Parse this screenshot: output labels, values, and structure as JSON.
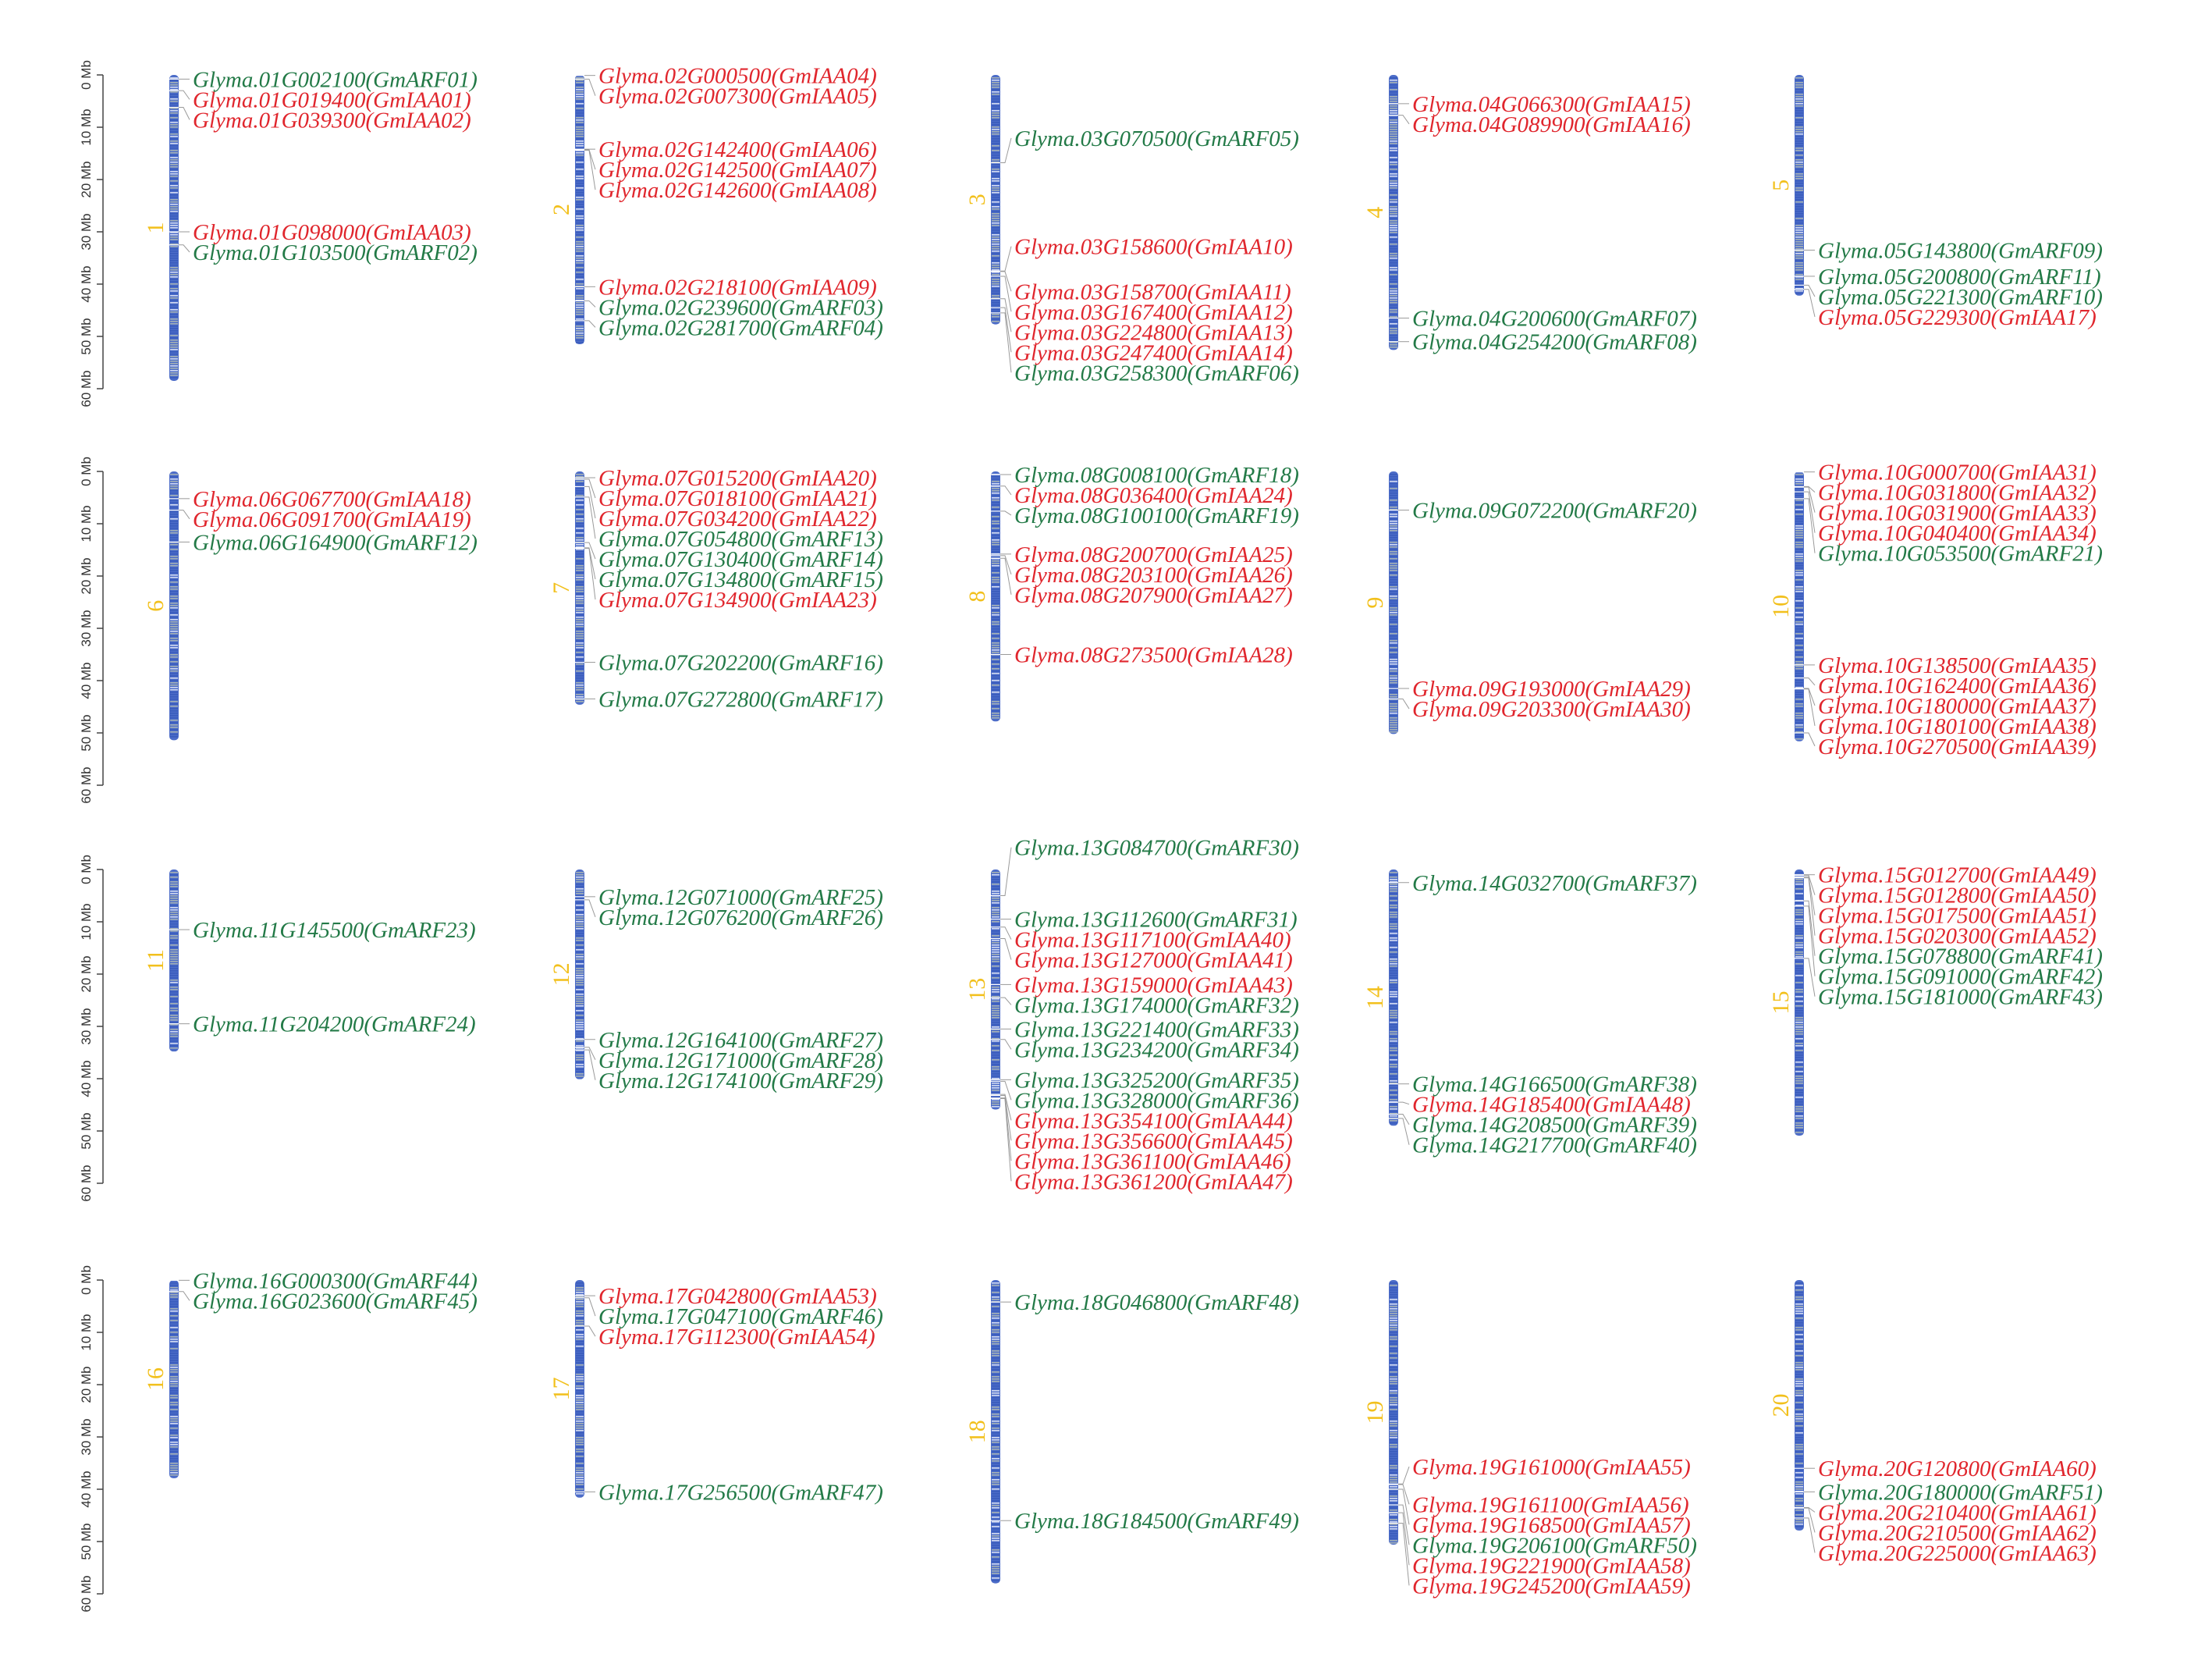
{
  "colors": {
    "arf": "#237A47",
    "iaa": "#E0262D",
    "chromosome_number": "#F2C01C",
    "chromosome_fill": "#4C6CC8",
    "chromosome_light": "#C2C8B0",
    "scale": "#444444"
  },
  "scale_labels": [
    "0 Mb",
    "10 Mb",
    "20 Mb",
    "30 Mb",
    "40 Mb",
    "50 Mb",
    "60 Mb"
  ],
  "chromosomes": [
    {
      "id": "1",
      "length_mb": 58.5,
      "genes": [
        {
          "name": "Glyma.01G002100(GmARF01)",
          "type": "ARF",
          "pos_mb": 0.8
        },
        {
          "name": "Glyma.01G019400(GmIAA01)",
          "type": "IAA",
          "pos_mb": 3.0
        },
        {
          "name": "Glyma.01G039300(GmIAA02)",
          "type": "IAA",
          "pos_mb": 6.2
        },
        {
          "name": "Glyma.01G098000(GmIAA03)",
          "type": "IAA",
          "pos_mb": 30.0
        },
        {
          "name": "Glyma.01G103500(GmARF02)",
          "type": "ARF",
          "pos_mb": 32.5
        }
      ]
    },
    {
      "id": "2",
      "length_mb": 51.5,
      "genes": [
        {
          "name": "Glyma.02G000500(GmIAA04)",
          "type": "IAA",
          "pos_mb": 0.1
        },
        {
          "name": "Glyma.02G007300(GmIAA05)",
          "type": "IAA",
          "pos_mb": 0.8
        },
        {
          "name": "Glyma.02G142400(GmIAA06)",
          "type": "IAA",
          "pos_mb": 14.2
        },
        {
          "name": "Glyma.02G142500(GmIAA07)",
          "type": "IAA",
          "pos_mb": 14.3
        },
        {
          "name": "Glyma.02G142600(GmIAA08)",
          "type": "IAA",
          "pos_mb": 14.4
        },
        {
          "name": "Glyma.02G218100(GmIAA09)",
          "type": "IAA",
          "pos_mb": 40.5
        },
        {
          "name": "Glyma.02G239600(GmARF03)",
          "type": "ARF",
          "pos_mb": 43.2
        },
        {
          "name": "Glyma.02G281700(GmARF04)",
          "type": "ARF",
          "pos_mb": 47.0
        }
      ]
    },
    {
      "id": "3",
      "length_mb": 47.7,
      "genes": [
        {
          "name": "Glyma.03G070500(GmARF05)",
          "type": "ARF",
          "pos_mb": 16.8
        },
        {
          "name": "Glyma.03G158600(GmIAA10)",
          "type": "IAA",
          "pos_mb": 37.5
        },
        {
          "name": "Glyma.03G158700(GmIAA11)",
          "type": "IAA",
          "pos_mb": 37.6
        },
        {
          "name": "Glyma.03G167400(GmIAA12)",
          "type": "IAA",
          "pos_mb": 38.5
        },
        {
          "name": "Glyma.03G224800(GmIAA13)",
          "type": "IAA",
          "pos_mb": 42.8
        },
        {
          "name": "Glyma.03G247400(GmIAA14)",
          "type": "IAA",
          "pos_mb": 44.5
        },
        {
          "name": "Glyma.03G258300(GmARF06)",
          "type": "ARF",
          "pos_mb": 45.5
        }
      ]
    },
    {
      "id": "4",
      "length_mb": 52.6,
      "genes": [
        {
          "name": "Glyma.04G066300(GmIAA15)",
          "type": "IAA",
          "pos_mb": 5.5
        },
        {
          "name": "Glyma.04G089900(GmIAA16)",
          "type": "IAA",
          "pos_mb": 7.7
        },
        {
          "name": "Glyma.04G200600(GmARF07)",
          "type": "ARF",
          "pos_mb": 46.5
        },
        {
          "name": "Glyma.04G254200(GmARF08)",
          "type": "ARF",
          "pos_mb": 51.0
        }
      ]
    },
    {
      "id": "5",
      "length_mb": 42.2,
      "genes": [
        {
          "name": "Glyma.05G143800(GmARF09)",
          "type": "ARF",
          "pos_mb": 33.5
        },
        {
          "name": "Glyma.05G200800(GmARF11)",
          "type": "ARF",
          "pos_mb": 38.5
        },
        {
          "name": "Glyma.05G221300(GmARF10)",
          "type": "ARF",
          "pos_mb": 40.2
        },
        {
          "name": "Glyma.05G229300(GmIAA17)",
          "type": "IAA",
          "pos_mb": 41.0
        }
      ]
    },
    {
      "id": "6",
      "length_mb": 51.4,
      "genes": [
        {
          "name": "Glyma.06G067700(GmIAA18)",
          "type": "IAA",
          "pos_mb": 5.2
        },
        {
          "name": "Glyma.06G091700(GmIAA19)",
          "type": "IAA",
          "pos_mb": 7.4
        },
        {
          "name": "Glyma.06G164900(GmARF12)",
          "type": "ARF",
          "pos_mb": 13.5
        }
      ]
    },
    {
      "id": "7",
      "length_mb": 44.6,
      "genes": [
        {
          "name": "Glyma.07G015200(GmIAA20)",
          "type": "IAA",
          "pos_mb": 1.2
        },
        {
          "name": "Glyma.07G018100(GmIAA21)",
          "type": "IAA",
          "pos_mb": 1.5
        },
        {
          "name": "Glyma.07G034200(GmIAA22)",
          "type": "IAA",
          "pos_mb": 2.9
        },
        {
          "name": "Glyma.07G054800(GmARF13)",
          "type": "ARF",
          "pos_mb": 4.9
        },
        {
          "name": "Glyma.07G130400(GmARF14)",
          "type": "ARF",
          "pos_mb": 13.6
        },
        {
          "name": "Glyma.07G134800(GmARF15)",
          "type": "ARF",
          "pos_mb": 14.6
        },
        {
          "name": "Glyma.07G134900(GmIAA23)",
          "type": "IAA",
          "pos_mb": 14.7
        },
        {
          "name": "Glyma.07G202200(GmARF16)",
          "type": "ARF",
          "pos_mb": 36.5
        },
        {
          "name": "Glyma.07G272800(GmARF17)",
          "type": "ARF",
          "pos_mb": 43.5
        }
      ]
    },
    {
      "id": "8",
      "length_mb": 47.8,
      "genes": [
        {
          "name": "Glyma.08G008100(GmARF18)",
          "type": "ARF",
          "pos_mb": 0.6
        },
        {
          "name": "Glyma.08G036400(GmIAA24)",
          "type": "IAA",
          "pos_mb": 2.8
        },
        {
          "name": "Glyma.08G100100(GmARF19)",
          "type": "ARF",
          "pos_mb": 7.6
        },
        {
          "name": "Glyma.08G200700(GmIAA25)",
          "type": "IAA",
          "pos_mb": 15.8
        },
        {
          "name": "Glyma.08G203100(GmIAA26)",
          "type": "IAA",
          "pos_mb": 16.1
        },
        {
          "name": "Glyma.08G207900(GmIAA27)",
          "type": "IAA",
          "pos_mb": 16.6
        },
        {
          "name": "Glyma.08G273500(GmIAA28)",
          "type": "IAA",
          "pos_mb": 35.0
        }
      ]
    },
    {
      "id": "9",
      "length_mb": 50.2,
      "genes": [
        {
          "name": "Glyma.09G072200(GmARF20)",
          "type": "ARF",
          "pos_mb": 7.4
        },
        {
          "name": "Glyma.09G193000(GmIAA29)",
          "type": "IAA",
          "pos_mb": 41.5
        },
        {
          "name": "Glyma.09G203300(GmIAA30)",
          "type": "IAA",
          "pos_mb": 43.5
        }
      ]
    },
    {
      "id": "10",
      "length_mb": 51.6,
      "genes": [
        {
          "name": "Glyma.10G000700(GmIAA31)",
          "type": "IAA",
          "pos_mb": 0.1
        },
        {
          "name": "Glyma.10G031800(GmIAA32)",
          "type": "IAA",
          "pos_mb": 2.9
        },
        {
          "name": "Glyma.10G031900(GmIAA33)",
          "type": "IAA",
          "pos_mb": 3.0
        },
        {
          "name": "Glyma.10G040400(GmIAA34)",
          "type": "IAA",
          "pos_mb": 3.9
        },
        {
          "name": "Glyma.10G053500(GmARF21)",
          "type": "ARF",
          "pos_mb": 5.2
        },
        {
          "name": "Glyma.10G138500(GmIAA35)",
          "type": "IAA",
          "pos_mb": 37.0
        },
        {
          "name": "Glyma.10G162400(GmIAA36)",
          "type": "IAA",
          "pos_mb": 39.5
        },
        {
          "name": "Glyma.10G180000(GmIAA37)",
          "type": "IAA",
          "pos_mb": 41.5
        },
        {
          "name": "Glyma.10G180100(GmIAA38)",
          "type": "IAA",
          "pos_mb": 41.6
        },
        {
          "name": "Glyma.10G270500(GmIAA39)",
          "type": "IAA",
          "pos_mb": 50.0
        }
      ]
    },
    {
      "id": "11",
      "length_mb": 34.8,
      "genes": [
        {
          "name": "Glyma.11G145500(GmARF23)",
          "type": "ARF",
          "pos_mb": 11.5
        },
        {
          "name": "Glyma.11G204200(GmARF24)",
          "type": "ARF",
          "pos_mb": 29.5
        }
      ]
    },
    {
      "id": "12",
      "length_mb": 40.1,
      "genes": [
        {
          "name": "Glyma.12G071000(GmARF25)",
          "type": "ARF",
          "pos_mb": 5.2
        },
        {
          "name": "Glyma.12G076200(GmARF26)",
          "type": "ARF",
          "pos_mb": 5.8
        },
        {
          "name": "Glyma.12G164100(GmARF27)",
          "type": "ARF",
          "pos_mb": 32.5
        },
        {
          "name": "Glyma.12G171000(GmARF28)",
          "type": "ARF",
          "pos_mb": 34.0
        },
        {
          "name": "Glyma.12G174100(GmARF29)",
          "type": "ARF",
          "pos_mb": 34.5
        }
      ]
    },
    {
      "id": "13",
      "length_mb": 45.9,
      "genes": [
        {
          "name": "Glyma.13G084700(GmARF30)",
          "type": "ARF",
          "pos_mb": 5.0
        },
        {
          "name": "Glyma.13G112600(GmARF31)",
          "type": "ARF",
          "pos_mb": 9.5
        },
        {
          "name": "Glyma.13G117100(GmIAA40)",
          "type": "IAA",
          "pos_mb": 11.0
        },
        {
          "name": "Glyma.13G127000(GmIAA41)",
          "type": "IAA",
          "pos_mb": 13.2
        },
        {
          "name": "Glyma.13G159000(GmIAA43)",
          "type": "IAA",
          "pos_mb": 22.0
        },
        {
          "name": "Glyma.13G174000(GmARF32)",
          "type": "ARF",
          "pos_mb": 24.5
        },
        {
          "name": "Glyma.13G221400(GmARF33)",
          "type": "ARF",
          "pos_mb": 30.5
        },
        {
          "name": "Glyma.13G234200(GmARF34)",
          "type": "ARF",
          "pos_mb": 32.5
        },
        {
          "name": "Glyma.13G325200(GmARF35)",
          "type": "ARF",
          "pos_mb": 40.2
        },
        {
          "name": "Glyma.13G328000(GmARF36)",
          "type": "ARF",
          "pos_mb": 40.5
        },
        {
          "name": "Glyma.13G354100(GmIAA44)",
          "type": "IAA",
          "pos_mb": 43.0
        },
        {
          "name": "Glyma.13G356600(GmIAA45)",
          "type": "IAA",
          "pos_mb": 43.2
        },
        {
          "name": "Glyma.13G361100(GmIAA46)",
          "type": "IAA",
          "pos_mb": 43.7
        },
        {
          "name": "Glyma.13G361200(GmIAA47)",
          "type": "IAA",
          "pos_mb": 43.8
        }
      ]
    },
    {
      "id": "14",
      "length_mb": 49.0,
      "genes": [
        {
          "name": "Glyma.14G032700(GmARF37)",
          "type": "ARF",
          "pos_mb": 2.5
        },
        {
          "name": "Glyma.14G166500(GmARF38)",
          "type": "ARF",
          "pos_mb": 41.0
        },
        {
          "name": "Glyma.14G185400(GmIAA48)",
          "type": "IAA",
          "pos_mb": 44.5
        },
        {
          "name": "Glyma.14G208500(GmARF39)",
          "type": "ARF",
          "pos_mb": 46.8
        },
        {
          "name": "Glyma.14G217700(GmARF40)",
          "type": "ARF",
          "pos_mb": 47.6
        }
      ]
    },
    {
      "id": "15",
      "length_mb": 50.9,
      "genes": [
        {
          "name": "Glyma.15G012700(GmIAA49)",
          "type": "IAA",
          "pos_mb": 1.0
        },
        {
          "name": "Glyma.15G012800(GmIAA50)",
          "type": "IAA",
          "pos_mb": 1.1
        },
        {
          "name": "Glyma.15G017500(GmIAA51)",
          "type": "IAA",
          "pos_mb": 1.4
        },
        {
          "name": "Glyma.15G020300(GmIAA52)",
          "type": "IAA",
          "pos_mb": 1.6
        },
        {
          "name": "Glyma.15G078800(GmARF41)",
          "type": "ARF",
          "pos_mb": 6.0
        },
        {
          "name": "Glyma.15G091000(GmARF42)",
          "type": "ARF",
          "pos_mb": 7.0
        },
        {
          "name": "Glyma.15G181000(GmARF43)",
          "type": "ARF",
          "pos_mb": 17.0
        }
      ]
    },
    {
      "id": "16",
      "length_mb": 37.9,
      "genes": [
        {
          "name": "Glyma.16G000300(GmARF44)",
          "type": "ARF",
          "pos_mb": 0.05
        },
        {
          "name": "Glyma.16G023600(GmARF45)",
          "type": "ARF",
          "pos_mb": 2.2
        }
      ]
    },
    {
      "id": "17",
      "length_mb": 41.6,
      "genes": [
        {
          "name": "Glyma.17G042800(GmIAA53)",
          "type": "IAA",
          "pos_mb": 3.0
        },
        {
          "name": "Glyma.17G047100(GmARF46)",
          "type": "ARF",
          "pos_mb": 3.4
        },
        {
          "name": "Glyma.17G112300(GmIAA54)",
          "type": "IAA",
          "pos_mb": 8.8
        },
        {
          "name": "Glyma.17G256500(GmARF47)",
          "type": "ARF",
          "pos_mb": 40.5
        }
      ]
    },
    {
      "id": "18",
      "length_mb": 58.0,
      "genes": [
        {
          "name": "Glyma.18G046800(GmARF48)",
          "type": "ARF",
          "pos_mb": 4.2
        },
        {
          "name": "Glyma.18G184500(GmARF49)",
          "type": "ARF",
          "pos_mb": 46.0
        }
      ]
    },
    {
      "id": "19",
      "length_mb": 50.6,
      "genes": [
        {
          "name": "Glyma.19G161000(GmIAA55)",
          "type": "IAA",
          "pos_mb": 39.0
        },
        {
          "name": "Glyma.19G161100(GmIAA56)",
          "type": "IAA",
          "pos_mb": 39.1
        },
        {
          "name": "Glyma.19G168500(GmIAA57)",
          "type": "IAA",
          "pos_mb": 40.0
        },
        {
          "name": "Glyma.19G206100(GmARF50)",
          "type": "ARF",
          "pos_mb": 43.0
        },
        {
          "name": "Glyma.19G221900(GmIAA58)",
          "type": "IAA",
          "pos_mb": 44.5
        },
        {
          "name": "Glyma.19G245200(GmIAA59)",
          "type": "IAA",
          "pos_mb": 46.5
        }
      ]
    },
    {
      "id": "20",
      "length_mb": 47.9,
      "genes": [
        {
          "name": "Glyma.20G120800(GmIAA60)",
          "type": "IAA",
          "pos_mb": 36.0
        },
        {
          "name": "Glyma.20G180000(GmARF51)",
          "type": "ARF",
          "pos_mb": 40.5
        },
        {
          "name": "Glyma.20G210400(GmIAA61)",
          "type": "IAA",
          "pos_mb": 43.5
        },
        {
          "name": "Glyma.20G210500(GmIAA62)",
          "type": "IAA",
          "pos_mb": 43.6
        },
        {
          "name": "Glyma.20G225000(GmIAA63)",
          "type": "IAA",
          "pos_mb": 45.5
        }
      ]
    }
  ]
}
